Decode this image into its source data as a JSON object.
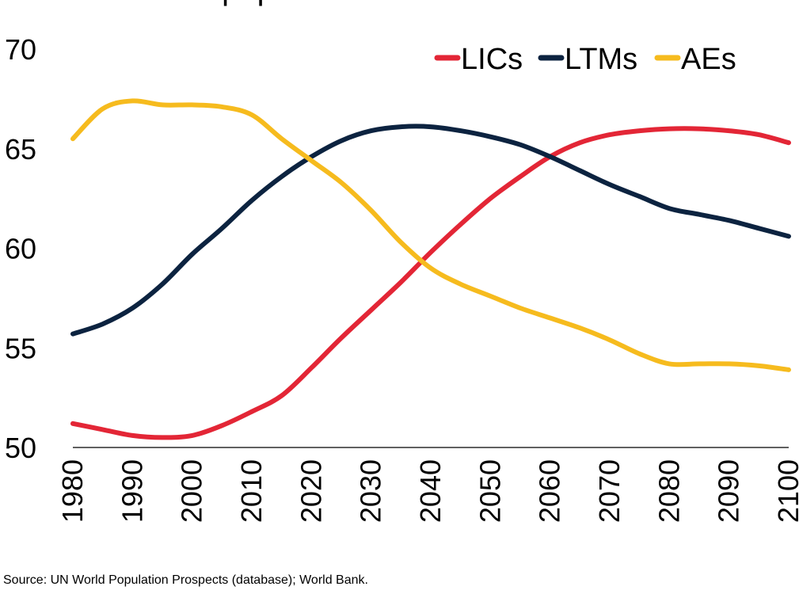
{
  "chart_data": {
    "type": "line",
    "title": "Percent of total population",
    "xlabel": "",
    "ylabel": "",
    "ylim": [
      50,
      70
    ],
    "xlim": [
      1980,
      2100
    ],
    "yticks": [
      50,
      55,
      60,
      65,
      70
    ],
    "xticks": [
      1980,
      1990,
      2000,
      2010,
      2020,
      2030,
      2040,
      2050,
      2060,
      2070,
      2080,
      2090,
      2100
    ],
    "grid": false,
    "legend": "top-right",
    "x": [
      1980,
      1985,
      1990,
      1995,
      2000,
      2005,
      2010,
      2015,
      2020,
      2025,
      2030,
      2035,
      2040,
      2045,
      2050,
      2055,
      2060,
      2065,
      2070,
      2075,
      2080,
      2085,
      2090,
      2095,
      2100
    ],
    "series": [
      {
        "name": "LICs",
        "color": "#e32636",
        "values": [
          51.2,
          50.9,
          50.6,
          50.5,
          50.6,
          51.1,
          51.8,
          52.6,
          54.0,
          55.5,
          56.9,
          58.3,
          59.8,
          61.2,
          62.5,
          63.6,
          64.6,
          65.3,
          65.7,
          65.9,
          66.0,
          66.0,
          65.9,
          65.7,
          65.3
        ]
      },
      {
        "name": "LTMs",
        "color": "#0c2340",
        "values": [
          55.7,
          56.2,
          57.0,
          58.2,
          59.7,
          61.0,
          62.4,
          63.6,
          64.6,
          65.4,
          65.9,
          66.1,
          66.1,
          65.9,
          65.6,
          65.2,
          64.6,
          63.9,
          63.2,
          62.6,
          62.0,
          61.7,
          61.4,
          61.0,
          60.6
        ]
      },
      {
        "name": "AEs",
        "color": "#f6bb1e",
        "values": [
          65.5,
          67.0,
          67.4,
          67.2,
          67.2,
          67.1,
          66.7,
          65.5,
          64.4,
          63.3,
          61.9,
          60.3,
          59.0,
          58.2,
          57.6,
          57.0,
          56.5,
          56.0,
          55.4,
          54.7,
          54.2,
          54.2,
          54.2,
          54.1,
          53.9
        ]
      }
    ]
  },
  "source": "Source: UN World Population Prospects (database); World Bank."
}
